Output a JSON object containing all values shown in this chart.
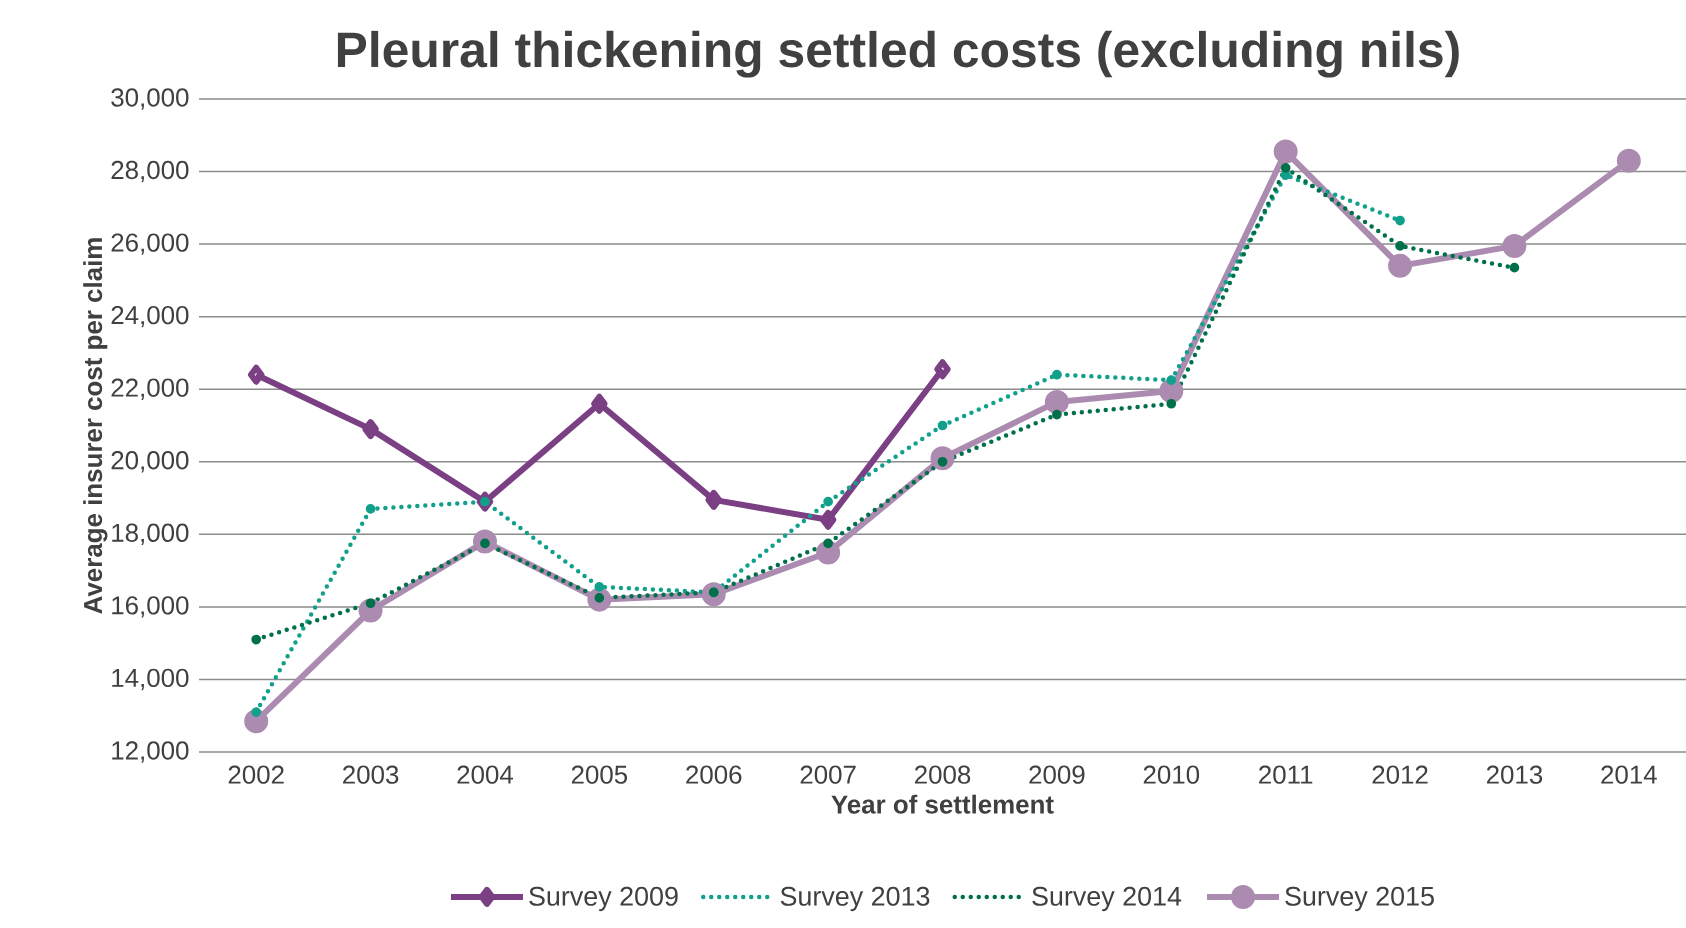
{
  "chart_data": {
    "type": "line",
    "title": "Pleural thickening settled costs (excluding nils)",
    "xlabel": "Year of settlement",
    "ylabel": "Average insurer cost per claim",
    "categories": [
      "2002",
      "2003",
      "2004",
      "2005",
      "2006",
      "2007",
      "2008",
      "2009",
      "2010",
      "2011",
      "2012",
      "2013",
      "2014"
    ],
    "series": [
      {
        "name": "Survey 2009",
        "color": "#7b3f84",
        "marker": "diamond",
        "line_style": "solid",
        "values": [
          22400,
          20900,
          18900,
          21600,
          18950,
          18400,
          22550,
          null,
          null,
          null,
          null,
          null,
          null
        ]
      },
      {
        "name": "Survey 2013",
        "color": "#11a08c",
        "marker": "none",
        "line_style": "dotted",
        "values": [
          13100,
          18700,
          18900,
          16550,
          16400,
          18900,
          21000,
          22400,
          22250,
          27900,
          26650,
          null,
          null
        ]
      },
      {
        "name": "Survey 2014",
        "color": "#00704a",
        "marker": "none",
        "line_style": "dotted",
        "values": [
          15100,
          16100,
          17750,
          16250,
          16400,
          17750,
          20000,
          21300,
          21600,
          28100,
          25950,
          25350,
          null
        ]
      },
      {
        "name": "Survey 2015",
        "color": "#ac8bb1",
        "marker": "circle",
        "line_style": "solid",
        "values": [
          12850,
          15900,
          17800,
          16200,
          16350,
          17500,
          20100,
          21650,
          21950,
          28550,
          25400,
          25950,
          28300
        ]
      }
    ],
    "ylim": [
      12000,
      30000
    ],
    "yticks": [
      {
        "value": 12000,
        "label": "12,000"
      },
      {
        "value": 14000,
        "label": "14,000"
      },
      {
        "value": 16000,
        "label": "16,000"
      },
      {
        "value": 18000,
        "label": "18,000"
      },
      {
        "value": 20000,
        "label": "20,000"
      },
      {
        "value": 22000,
        "label": "22,000"
      },
      {
        "value": 24000,
        "label": "24,000"
      },
      {
        "value": 26000,
        "label": "26,000"
      },
      {
        "value": 28000,
        "label": "28,000"
      },
      {
        "value": 30000,
        "label": "30,000"
      }
    ],
    "grid": "y",
    "legend": "bottom"
  }
}
